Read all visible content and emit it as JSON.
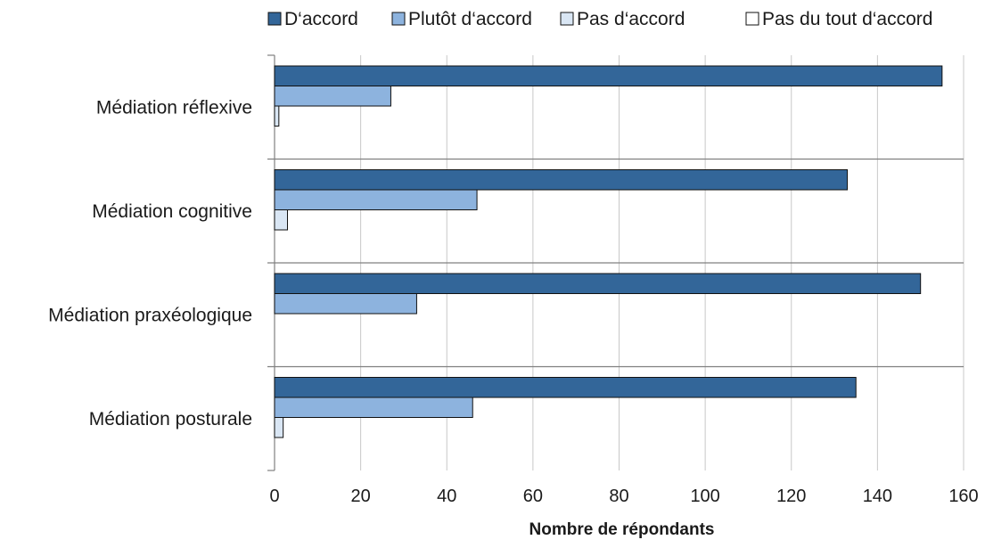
{
  "chart_data": {
    "type": "bar",
    "orientation": "horizontal",
    "title": "",
    "xlabel": "Nombre de répondants",
    "ylabel": "",
    "xlim": [
      0,
      160
    ],
    "xticks": [
      0,
      20,
      40,
      60,
      80,
      100,
      120,
      140,
      160
    ],
    "grid": "vertical",
    "legend": "top",
    "categories": [
      "Médiation réflexive",
      "Médiation cognitive",
      "Médiation praxéologique",
      "Médiation posturale"
    ],
    "series": [
      {
        "name": "D‘accord",
        "values": [
          155,
          133,
          150,
          135
        ],
        "color": "#336699"
      },
      {
        "name": "Plutôt d‘accord",
        "values": [
          27,
          47,
          33,
          46
        ],
        "color": "#8db3de"
      },
      {
        "name": "Pas d‘accord",
        "values": [
          1,
          3,
          0,
          2
        ],
        "color": "#d9e6f4"
      },
      {
        "name": "Pas du tout d‘accord",
        "values": [
          0,
          0,
          0,
          0
        ],
        "color": "#ffffff"
      }
    ]
  }
}
